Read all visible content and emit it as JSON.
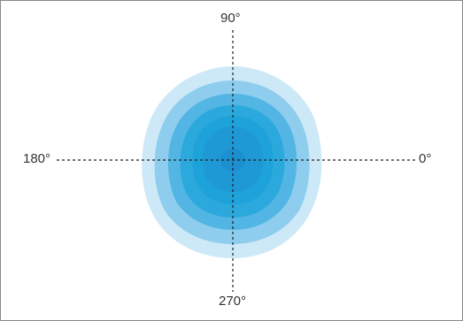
{
  "diagram": {
    "labels": {
      "top": "90°",
      "left": "180°",
      "right": "0°",
      "bottom": "270°"
    },
    "contour_colors": [
      "#cde9f8",
      "#8fcdee",
      "#52b5e3",
      "#2ba9dd",
      "#1ea2da",
      "#1f99d6"
    ],
    "axis_color": "#222222"
  }
}
